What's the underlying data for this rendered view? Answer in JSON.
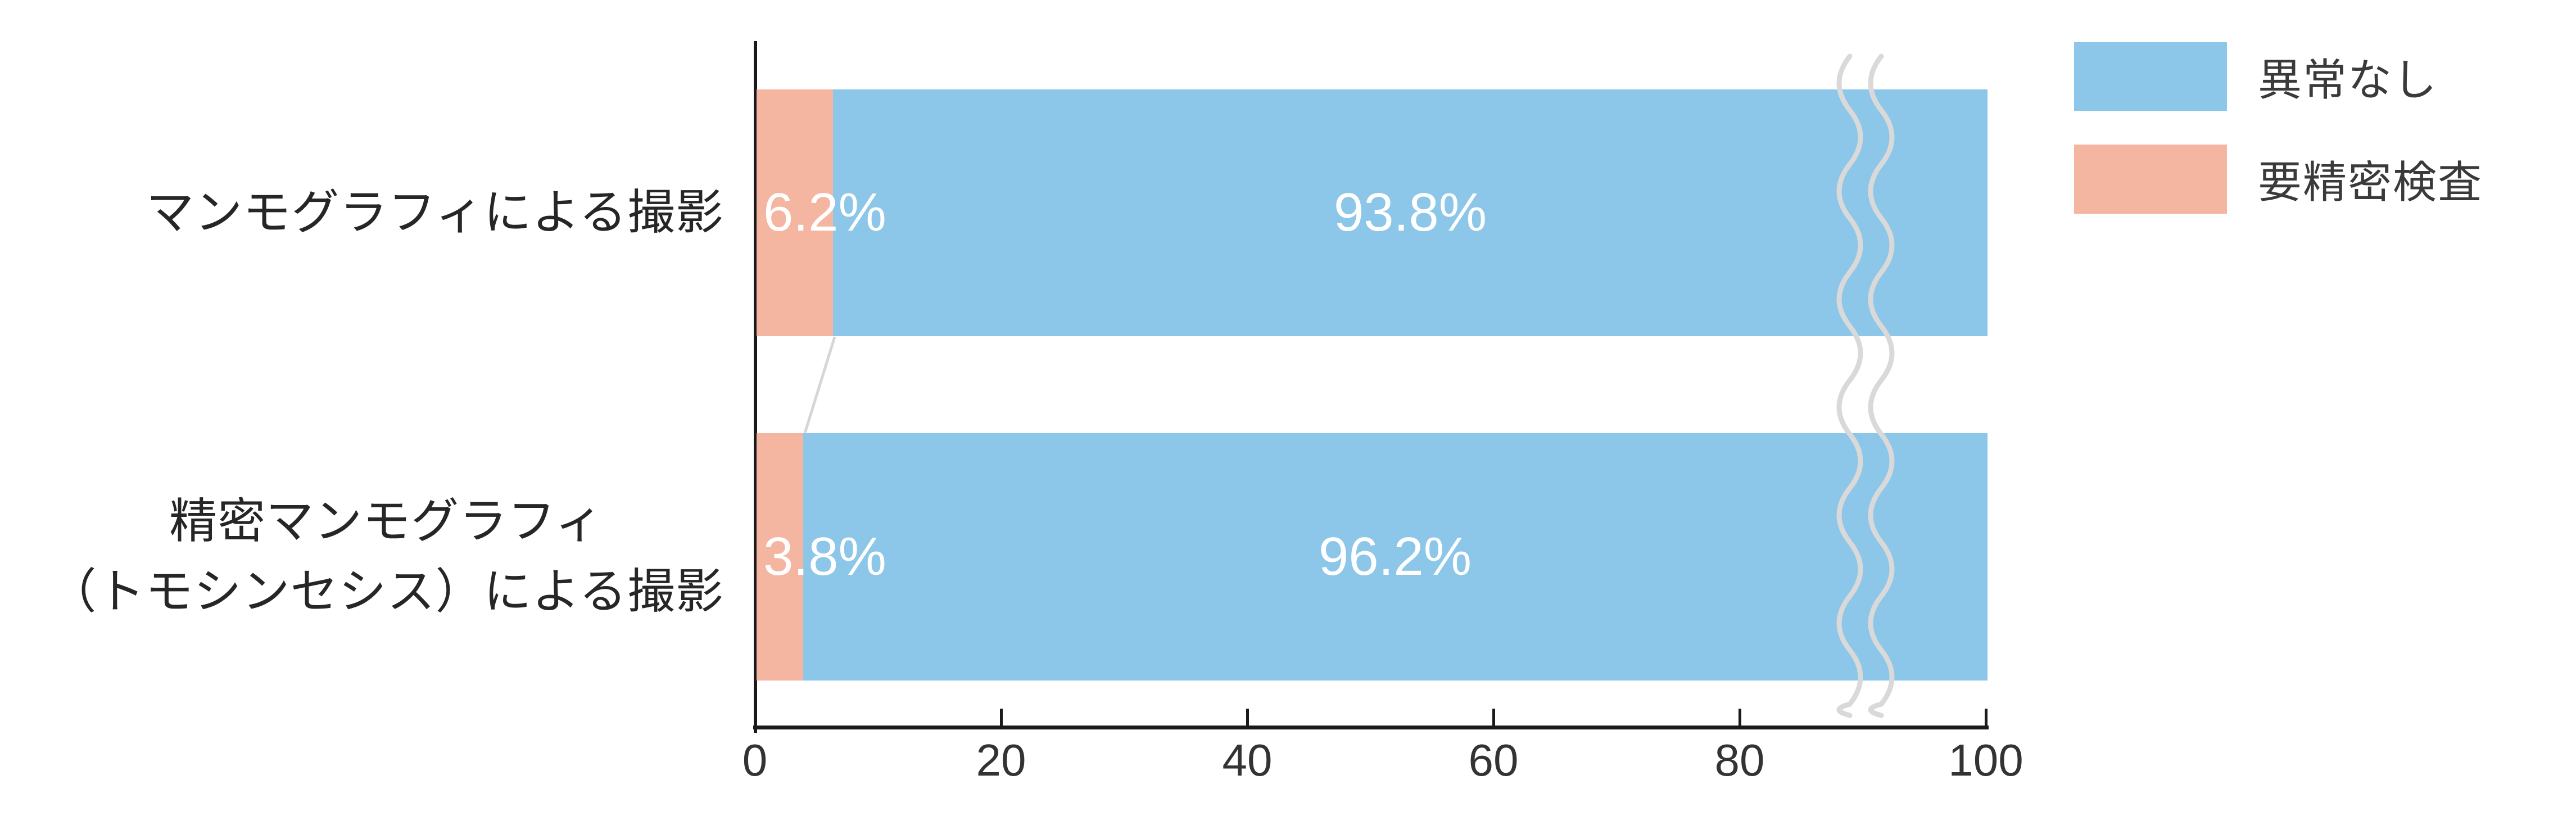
{
  "chart_data": {
    "type": "bar",
    "orientation": "horizontal-stacked",
    "title": "",
    "xlabel": "",
    "ylabel": "",
    "xlim": [
      0,
      100
    ],
    "grid": false,
    "axis_break_marker": "double-wavy-line near x=90",
    "x_ticks": [
      "0",
      "20",
      "40",
      "60",
      "80",
      "100"
    ],
    "categories": [
      "マンモグラフィによる撮影",
      "精密マンモグラフィ（トモシンセシス）による撮影"
    ],
    "series": [
      {
        "name": "要精密検査",
        "color": "#F4B6A1",
        "values": [
          6.2,
          3.8
        ]
      },
      {
        "name": "異常なし",
        "color": "#8CC6E9",
        "values": [
          93.8,
          96.2
        ]
      }
    ],
    "rows": [
      {
        "label_lines": [
          "マンモグラフィによる撮影"
        ],
        "minor_value": 6.2,
        "major_value": 93.8,
        "minor_label": "6.2%",
        "major_label": "93.8%"
      },
      {
        "label_lines": [
          "精密マンモグラフィ",
          "（トモシンセシス）による撮影"
        ],
        "minor_value": 3.8,
        "major_value": 96.2,
        "minor_label": "3.8%",
        "major_label": "96.2%"
      }
    ],
    "legend": {
      "position": "top-right",
      "items": [
        {
          "label": "異常なし",
          "color": "#8CC6E9"
        },
        {
          "label": "要精密検査",
          "color": "#F4B6A1"
        }
      ]
    },
    "colors": {
      "bar_major_blue": "#8CC6E9",
      "bar_minor_pink": "#F4B6A1",
      "axis_line": "#1a1a1a",
      "tick_text": "#333333",
      "label_text": "#262626",
      "break_wave_gray": "#D9D9D9",
      "connector_gray": "#D6D6D6",
      "bar_value_text": "#ffffff"
    }
  }
}
